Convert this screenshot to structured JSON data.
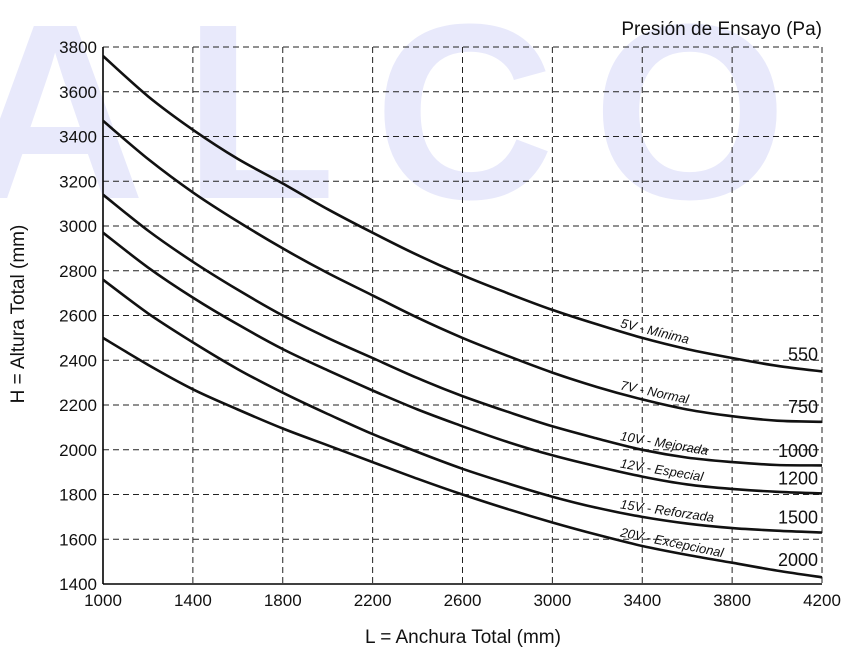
{
  "watermark": "ALCO",
  "chart_data": {
    "type": "line",
    "title": "Presión de Ensayo (Pa)",
    "xlabel": "L = Anchura Total (mm)",
    "ylabel": "H = Altura Total (mm)",
    "xlim": [
      1000,
      4200
    ],
    "ylim": [
      1400,
      3800
    ],
    "xticks": [
      1000,
      1400,
      1800,
      2200,
      2600,
      3000,
      3400,
      3800,
      4200
    ],
    "yticks": [
      1400,
      1600,
      1800,
      2000,
      2200,
      2400,
      2600,
      2800,
      3000,
      3200,
      3400,
      3600,
      3800
    ],
    "grid": true,
    "grid_style": "dashed",
    "line_color": "#111111",
    "watermark_color": "#e8e9fb",
    "series": [
      {
        "name": "5V - Mínima",
        "pressure": "550",
        "x": [
          1000,
          1200,
          1400,
          1600,
          1800,
          2000,
          2200,
          2400,
          2600,
          2800,
          3000,
          3200,
          3400,
          3600,
          3800,
          4000,
          4200
        ],
        "y": [
          3760,
          3580,
          3430,
          3300,
          3190,
          3075,
          2970,
          2870,
          2780,
          2700,
          2625,
          2560,
          2500,
          2450,
          2410,
          2375,
          2350
        ]
      },
      {
        "name": "7V - Normal",
        "pressure": "750",
        "x": [
          1000,
          1200,
          1400,
          1600,
          1800,
          2000,
          2200,
          2400,
          2600,
          2800,
          3000,
          3200,
          3400,
          3600,
          3800,
          4000,
          4200
        ],
        "y": [
          3470,
          3300,
          3150,
          3020,
          2900,
          2790,
          2690,
          2590,
          2500,
          2420,
          2345,
          2280,
          2225,
          2180,
          2150,
          2130,
          2125
        ]
      },
      {
        "name": "10V - Mejorada",
        "pressure": "1000",
        "x": [
          1000,
          1200,
          1400,
          1600,
          1800,
          2000,
          2200,
          2400,
          2600,
          2800,
          3000,
          3200,
          3400,
          3600,
          3800,
          4000,
          4200
        ],
        "y": [
          3140,
          2980,
          2840,
          2715,
          2600,
          2500,
          2410,
          2320,
          2240,
          2170,
          2105,
          2050,
          2000,
          1965,
          1945,
          1932,
          1930
        ]
      },
      {
        "name": "12V - Especial",
        "pressure": "1200",
        "x": [
          1000,
          1200,
          1400,
          1600,
          1800,
          2000,
          2200,
          2400,
          2600,
          2800,
          3000,
          3200,
          3400,
          3600,
          3800,
          4000,
          4200
        ],
        "y": [
          2970,
          2815,
          2680,
          2560,
          2450,
          2355,
          2265,
          2180,
          2105,
          2035,
          1975,
          1925,
          1880,
          1845,
          1825,
          1812,
          1805
        ]
      },
      {
        "name": "15V - Reforzada",
        "pressure": "1500",
        "x": [
          1000,
          1200,
          1400,
          1600,
          1800,
          2000,
          2200,
          2400,
          2600,
          2800,
          3000,
          3200,
          3400,
          3600,
          3800,
          4000,
          4200
        ],
        "y": [
          2760,
          2610,
          2480,
          2360,
          2255,
          2160,
          2070,
          1990,
          1915,
          1850,
          1790,
          1740,
          1700,
          1670,
          1650,
          1638,
          1630
        ]
      },
      {
        "name": "20V - Excepcional",
        "pressure": "2000",
        "x": [
          1000,
          1200,
          1400,
          1600,
          1800,
          2000,
          2200,
          2400,
          2600,
          2800,
          3000,
          3200,
          3400,
          3600,
          3800,
          4000,
          4200
        ],
        "y": [
          2500,
          2380,
          2270,
          2180,
          2095,
          2020,
          1945,
          1870,
          1800,
          1735,
          1675,
          1620,
          1570,
          1530,
          1495,
          1460,
          1430
        ]
      }
    ]
  }
}
